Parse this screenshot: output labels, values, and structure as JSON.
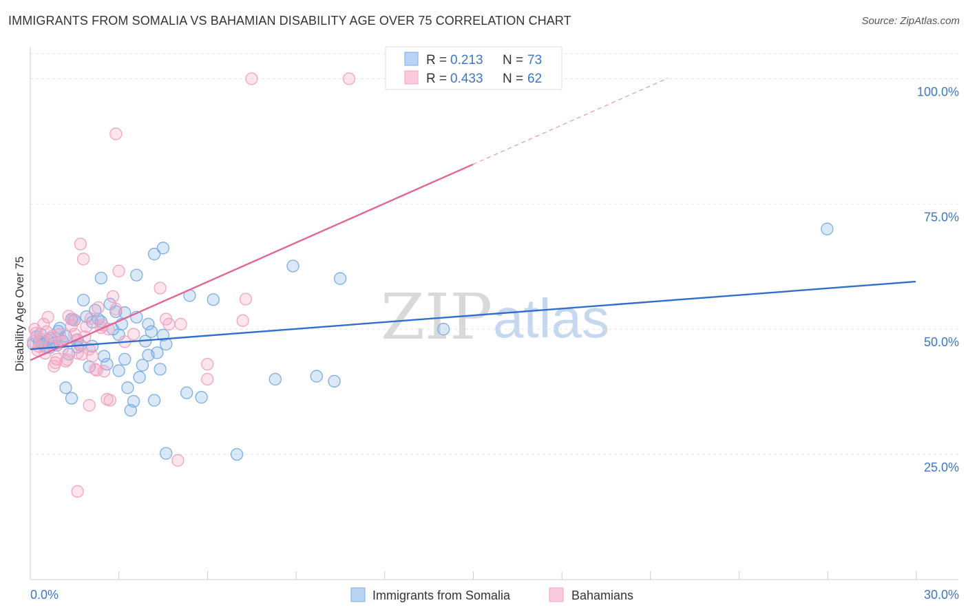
{
  "header": {
    "title": "IMMIGRANTS FROM SOMALIA VS BAHAMIAN DISABILITY AGE OVER 75 CORRELATION CHART",
    "source": "Source: ZipAtlas.com"
  },
  "watermark": {
    "zip": "ZIP",
    "atlas": "atlas"
  },
  "chart_data": {
    "type": "scatter",
    "title": "IMMIGRANTS FROM SOMALIA VS BAHAMIAN DISABILITY AGE OVER 75 CORRELATION CHART",
    "xlabel": "",
    "ylabel": "Disability Age Over 75",
    "xlim": [
      0,
      30
    ],
    "ylim": [
      0,
      105
    ],
    "x_tick_labels": [
      "0.0%",
      "30.0%"
    ],
    "y_ticks": [
      25,
      50,
      75,
      100
    ],
    "y_tick_labels": [
      "25.0%",
      "50.0%",
      "75.0%",
      "100.0%"
    ],
    "grid": true,
    "legend_position": "top-center",
    "stats_legend": [
      {
        "r_label": "R =",
        "r_value": "0.213",
        "n_label": "N =",
        "n_value": "73"
      },
      {
        "r_label": "R =",
        "r_value": "0.433",
        "n_label": "N =",
        "n_value": "62"
      }
    ],
    "series": [
      {
        "name": "Immigrants from Somalia",
        "color": "#7aaee6",
        "line_color": "#2f6fcb",
        "trend": {
          "x0": 0,
          "y0": 46.0,
          "x1": 30,
          "y1": 59.5,
          "dashed_to_x": 30
        },
        "points": [
          [
            0.2,
            48.5
          ],
          [
            0.3,
            47.5
          ],
          [
            0.4,
            47.0
          ],
          [
            0.5,
            46.5
          ],
          [
            0.6,
            47.8
          ],
          [
            0.7,
            48.2
          ],
          [
            0.8,
            47.2
          ],
          [
            0.9,
            46.8
          ],
          [
            1.0,
            50.2
          ],
          [
            1.1,
            47.6
          ],
          [
            1.2,
            48.6
          ],
          [
            1.3,
            45.0
          ],
          [
            1.4,
            52.0
          ],
          [
            1.5,
            51.8
          ],
          [
            1.6,
            46.4
          ],
          [
            1.7,
            46.8
          ],
          [
            1.8,
            55.8
          ],
          [
            1.9,
            52.5
          ],
          [
            2.0,
            42.5
          ],
          [
            2.1,
            46.6
          ],
          [
            2.2,
            53.8
          ],
          [
            2.3,
            52.0
          ],
          [
            2.4,
            51.5
          ],
          [
            2.5,
            44.6
          ],
          [
            2.6,
            43.0
          ],
          [
            2.7,
            55.0
          ],
          [
            2.8,
            50.0
          ],
          [
            2.9,
            53.5
          ],
          [
            3.0,
            41.7
          ],
          [
            3.1,
            51.0
          ],
          [
            3.2,
            44.0
          ],
          [
            3.3,
            38.3
          ],
          [
            3.4,
            33.8
          ],
          [
            3.5,
            35.6
          ],
          [
            3.6,
            52.4
          ],
          [
            3.7,
            40.4
          ],
          [
            3.8,
            42.8
          ],
          [
            3.9,
            47.6
          ],
          [
            4.0,
            44.8
          ],
          [
            4.1,
            49.5
          ],
          [
            4.2,
            35.8
          ],
          [
            4.3,
            45.3
          ],
          [
            4.4,
            42.0
          ],
          [
            4.5,
            48.8
          ],
          [
            4.6,
            25.2
          ],
          [
            4.2,
            65.0
          ],
          [
            4.5,
            66.2
          ],
          [
            3.6,
            60.8
          ],
          [
            2.4,
            60.2
          ],
          [
            5.4,
            56.7
          ],
          [
            6.2,
            55.9
          ],
          [
            8.9,
            62.6
          ],
          [
            10.5,
            60.1
          ],
          [
            5.3,
            37.3
          ],
          [
            5.8,
            36.4
          ],
          [
            7.0,
            25.0
          ],
          [
            8.3,
            40.0
          ],
          [
            9.7,
            40.6
          ],
          [
            10.3,
            39.6
          ],
          [
            14.0,
            50.0
          ],
          [
            27.0,
            70.0
          ],
          [
            1.2,
            38.3
          ],
          [
            1.4,
            36.2
          ],
          [
            2.1,
            51.4
          ],
          [
            3.2,
            53.3
          ],
          [
            4.0,
            51.0
          ],
          [
            4.6,
            47.0
          ],
          [
            0.1,
            47.0
          ],
          [
            0.35,
            49.0
          ],
          [
            0.65,
            46.3
          ],
          [
            0.95,
            49.6
          ],
          [
            1.6,
            47.9
          ],
          [
            3.0,
            48.9
          ]
        ]
      },
      {
        "name": "Bahamians",
        "color": "#f4a3bf",
        "line_color": "#e06694",
        "trend": {
          "x0": 0,
          "y0": 43.8,
          "x1": 15,
          "y1": 82.9,
          "dashed_to_x": 21.6
        },
        "points": [
          [
            0.1,
            47.5
          ],
          [
            0.2,
            49.2
          ],
          [
            0.3,
            46.5
          ],
          [
            0.4,
            48.0
          ],
          [
            0.5,
            45.2
          ],
          [
            0.6,
            52.4
          ],
          [
            0.7,
            47.0
          ],
          [
            0.8,
            42.6
          ],
          [
            0.9,
            44.0
          ],
          [
            1.0,
            49.0
          ],
          [
            1.1,
            46.2
          ],
          [
            1.2,
            43.6
          ],
          [
            1.3,
            52.6
          ],
          [
            1.4,
            50.7
          ],
          [
            1.5,
            49.0
          ],
          [
            1.6,
            45.2
          ],
          [
            1.7,
            67.0
          ],
          [
            1.8,
            64.0
          ],
          [
            1.9,
            50.5
          ],
          [
            2.0,
            46.0
          ],
          [
            2.1,
            44.6
          ],
          [
            2.2,
            42.0
          ],
          [
            2.3,
            54.3
          ],
          [
            2.4,
            50.3
          ],
          [
            2.5,
            41.6
          ],
          [
            2.6,
            36.0
          ],
          [
            2.7,
            35.8
          ],
          [
            2.8,
            56.5
          ],
          [
            2.9,
            54.0
          ],
          [
            3.0,
            61.6
          ],
          [
            3.2,
            47.5
          ],
          [
            4.4,
            58.2
          ],
          [
            4.7,
            51.0
          ],
          [
            5.1,
            51.0
          ],
          [
            6.0,
            43.0
          ],
          [
            6.0,
            40.0
          ],
          [
            7.3,
            56.0
          ],
          [
            7.2,
            51.7
          ],
          [
            5.0,
            23.8
          ],
          [
            1.6,
            17.6
          ],
          [
            2.0,
            34.8
          ],
          [
            2.9,
            89.0
          ],
          [
            7.5,
            100.0
          ],
          [
            10.8,
            100.0
          ],
          [
            0.15,
            50.0
          ],
          [
            0.25,
            45.8
          ],
          [
            0.45,
            51.0
          ],
          [
            0.55,
            49.5
          ],
          [
            0.75,
            48.6
          ],
          [
            0.85,
            43.3
          ],
          [
            1.05,
            47.4
          ],
          [
            1.25,
            43.9
          ],
          [
            1.45,
            52.0
          ],
          [
            1.55,
            47.8
          ],
          [
            1.75,
            45.0
          ],
          [
            1.85,
            48.5
          ],
          [
            2.05,
            52.1
          ],
          [
            2.25,
            41.8
          ],
          [
            2.45,
            50.8
          ],
          [
            2.65,
            50.0
          ],
          [
            3.5,
            49.0
          ],
          [
            4.6,
            52.0
          ]
        ]
      }
    ],
    "legend": [
      {
        "label": "Immigrants from Somalia",
        "color": "#7aaee6"
      },
      {
        "label": "Bahamians",
        "color": "#f4a3bf"
      }
    ]
  }
}
